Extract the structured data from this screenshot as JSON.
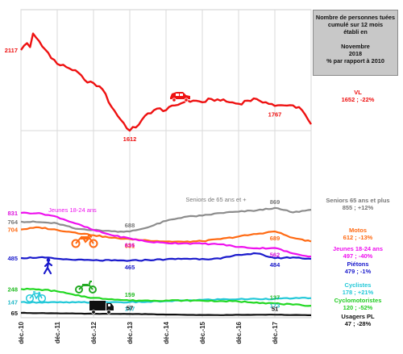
{
  "infobox": {
    "lines": [
      "Nombre de personnes tuées",
      "cumulé sur 12 mois",
      "établi en",
      "",
      "Novembre",
      "2018",
      "% par rapport à 2010"
    ]
  },
  "colors": {
    "vl": "#ee1111",
    "seniors": "#8c8c8c",
    "motos": "#ff6a13",
    "jeunes": "#ee11ee",
    "pietons": "#1a1acc",
    "cyclistes": "#22c8d8",
    "cyclo": "#22d822",
    "pl": "#111111",
    "grid": "#dadada"
  },
  "chart_data": {
    "type": "line",
    "x_ticks": [
      "déc.-10",
      "déc.-11",
      "déc.-12",
      "déc.-13",
      "déc.-14",
      "déc.-15",
      "déc.-16",
      "déc.-17"
    ],
    "grid": true,
    "legend_position": "right",
    "series": [
      {
        "key": "vl",
        "name": "VL",
        "legend_value": "1652 ; -22%",
        "anchors": [
          [
            0,
            2117
          ],
          [
            2,
            2160
          ],
          [
            3,
            2135
          ],
          [
            4,
            2220
          ],
          [
            5,
            2195
          ],
          [
            7,
            2140
          ],
          [
            9,
            2100
          ],
          [
            12,
            2030
          ],
          [
            15,
            2010
          ],
          [
            18,
            1990
          ],
          [
            21,
            1930
          ],
          [
            24,
            1910
          ],
          [
            27,
            1870
          ],
          [
            30,
            1760
          ],
          [
            33,
            1680
          ],
          [
            36,
            1612
          ],
          [
            39,
            1650
          ],
          [
            42,
            1720
          ],
          [
            45,
            1750
          ],
          [
            48,
            1740
          ],
          [
            51,
            1770
          ],
          [
            54,
            1790
          ],
          [
            57,
            1800
          ],
          [
            60,
            1790
          ],
          [
            63,
            1810
          ],
          [
            66,
            1800
          ],
          [
            69,
            1790
          ],
          [
            72,
            1780
          ],
          [
            75,
            1800
          ],
          [
            78,
            1810
          ],
          [
            81,
            1790
          ],
          [
            84,
            1767
          ],
          [
            87,
            1770
          ],
          [
            90,
            1770
          ],
          [
            93,
            1740
          ],
          [
            95,
            1680
          ],
          [
            96,
            1652
          ]
        ],
        "labels": [
          [
            "2117",
            0
          ],
          [
            "1612",
            36
          ],
          [
            "1767",
            84
          ]
        ]
      },
      {
        "key": "seniors",
        "name": "Seniors 65 ans et plus",
        "inline_name": "Seniors de 65 ans et +",
        "legend_value": "855 ; +12%",
        "anchors": [
          [
            0,
            764
          ],
          [
            6,
            760
          ],
          [
            12,
            750
          ],
          [
            18,
            710
          ],
          [
            24,
            700
          ],
          [
            30,
            690
          ],
          [
            36,
            688
          ],
          [
            42,
            720
          ],
          [
            48,
            770
          ],
          [
            54,
            800
          ],
          [
            60,
            810
          ],
          [
            66,
            830
          ],
          [
            72,
            840
          ],
          [
            78,
            850
          ],
          [
            84,
            869
          ],
          [
            90,
            835
          ],
          [
            96,
            855
          ]
        ],
        "labels": [
          [
            "764",
            0
          ],
          [
            "688",
            36
          ],
          [
            "869",
            84
          ]
        ]
      },
      {
        "key": "motos",
        "name": "Motos",
        "legend_value": "612 ; -13%",
        "anchors": [
          [
            0,
            704
          ],
          [
            6,
            720
          ],
          [
            12,
            700
          ],
          [
            18,
            680
          ],
          [
            24,
            660
          ],
          [
            30,
            640
          ],
          [
            36,
            631
          ],
          [
            42,
            620
          ],
          [
            48,
            612
          ],
          [
            54,
            610
          ],
          [
            60,
            615
          ],
          [
            66,
            630
          ],
          [
            72,
            650
          ],
          [
            78,
            670
          ],
          [
            84,
            689
          ],
          [
            90,
            640
          ],
          [
            96,
            612
          ]
        ],
        "labels": [
          [
            "704",
            0
          ],
          [
            "631",
            36
          ],
          [
            "689",
            84
          ]
        ]
      },
      {
        "key": "jeunes",
        "name": "Jeunes 18-24 ans",
        "legend_value": "497 ; -40%",
        "anchors": [
          [
            0,
            831
          ],
          [
            6,
            830
          ],
          [
            12,
            800
          ],
          [
            18,
            750
          ],
          [
            24,
            700
          ],
          [
            30,
            660
          ],
          [
            36,
            636
          ],
          [
            42,
            610
          ],
          [
            48,
            600
          ],
          [
            54,
            598
          ],
          [
            60,
            595
          ],
          [
            66,
            590
          ],
          [
            72,
            570
          ],
          [
            78,
            560
          ],
          [
            84,
            562
          ],
          [
            90,
            520
          ],
          [
            96,
            497
          ]
        ],
        "labels": [
          [
            "831",
            0
          ],
          [
            "636",
            36
          ],
          [
            "562",
            84
          ]
        ]
      },
      {
        "key": "pietons",
        "name": "Piétons",
        "legend_value": "479 ; -1%",
        "anchors": [
          [
            0,
            485
          ],
          [
            6,
            490
          ],
          [
            12,
            480
          ],
          [
            18,
            470
          ],
          [
            24,
            468
          ],
          [
            30,
            466
          ],
          [
            36,
            465
          ],
          [
            42,
            470
          ],
          [
            48,
            475
          ],
          [
            54,
            480
          ],
          [
            60,
            478
          ],
          [
            66,
            480
          ],
          [
            72,
            510
          ],
          [
            78,
            520
          ],
          [
            84,
            484
          ],
          [
            90,
            490
          ],
          [
            96,
            479
          ]
        ],
        "labels": [
          [
            "485",
            0
          ],
          [
            "465",
            36
          ],
          [
            "484",
            84
          ]
        ]
      },
      {
        "key": "cyclistes",
        "name": "Cyclistes",
        "legend_value": "178 ; +21%",
        "anchors": [
          [
            0,
            147
          ],
          [
            6,
            146
          ],
          [
            12,
            145
          ],
          [
            18,
            145
          ],
          [
            24,
            146
          ],
          [
            30,
            147
          ],
          [
            36,
            147
          ],
          [
            42,
            150
          ],
          [
            48,
            155
          ],
          [
            54,
            160
          ],
          [
            60,
            165
          ],
          [
            66,
            168
          ],
          [
            72,
            170
          ],
          [
            78,
            172
          ],
          [
            84,
            173
          ],
          [
            90,
            176
          ],
          [
            96,
            178
          ]
        ],
        "labels": [
          [
            "147",
            0
          ],
          [
            "147",
            36
          ],
          [
            "173",
            84
          ]
        ]
      },
      {
        "key": "cyclo",
        "name": "Cyclomotoristes",
        "legend_value": "120 ; -52%",
        "anchors": [
          [
            0,
            248
          ],
          [
            6,
            245
          ],
          [
            12,
            230
          ],
          [
            18,
            200
          ],
          [
            24,
            180
          ],
          [
            30,
            170
          ],
          [
            36,
            159
          ],
          [
            42,
            160
          ],
          [
            48,
            160
          ],
          [
            54,
            160
          ],
          [
            60,
            158
          ],
          [
            66,
            156
          ],
          [
            72,
            152
          ],
          [
            78,
            145
          ],
          [
            84,
            137
          ],
          [
            90,
            128
          ],
          [
            96,
            120
          ]
        ],
        "labels": [
          [
            "248",
            0
          ],
          [
            "159",
            36
          ],
          [
            "137",
            84
          ]
        ]
      },
      {
        "key": "pl",
        "name": "Usagers PL",
        "legend_value": "47 ; -28%",
        "anchors": [
          [
            0,
            65
          ],
          [
            6,
            63
          ],
          [
            12,
            62
          ],
          [
            18,
            60
          ],
          [
            24,
            58
          ],
          [
            30,
            57
          ],
          [
            36,
            57
          ],
          [
            42,
            55
          ],
          [
            48,
            52
          ],
          [
            54,
            50
          ],
          [
            60,
            49
          ],
          [
            66,
            48
          ],
          [
            72,
            50
          ],
          [
            78,
            51
          ],
          [
            84,
            51
          ],
          [
            90,
            49
          ],
          [
            96,
            47
          ]
        ],
        "labels": [
          [
            "65",
            0
          ],
          [
            "57",
            36
          ],
          [
            "51",
            84
          ]
        ]
      }
    ]
  }
}
